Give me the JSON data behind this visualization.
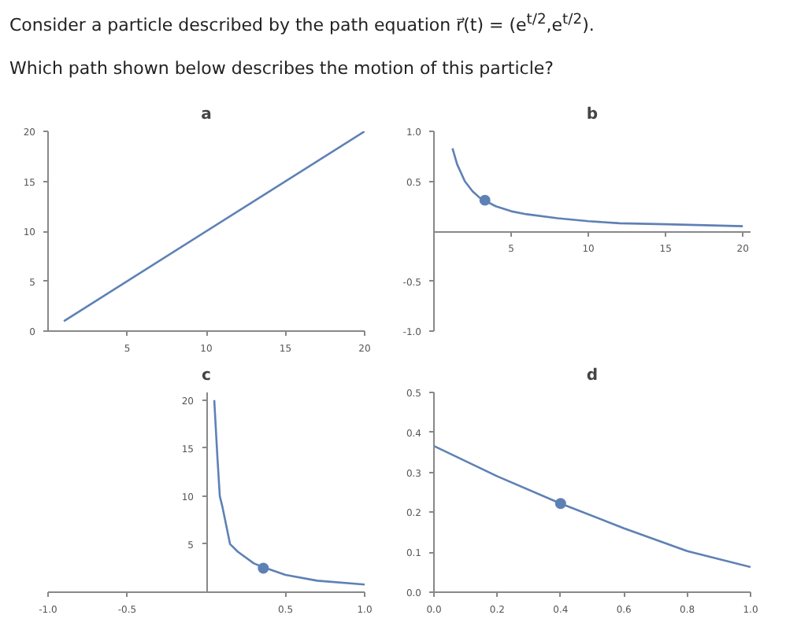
{
  "chart_data": [
    {
      "type": "other",
      "title": "Consider a particle described by the path equation r⃗(t) = (e$^{t/2}$,e$^{t/2}$).",
      "subtitle": "Which path shown below describes the motion of this particle?"
    },
    {
      "type": "line",
      "title": "a",
      "xlim": [
        0,
        20
      ],
      "ylim": [
        0,
        20
      ],
      "xticks": [
        5,
        10,
        15,
        20
      ],
      "yticks": [
        0,
        5,
        10,
        15,
        20
      ],
      "series": [
        {
          "color": "#5e81b5",
          "x": [
            1,
            20
          ],
          "values": [
            1,
            20
          ]
        }
      ]
    },
    {
      "type": "line",
      "title": "b",
      "xlim": [
        0,
        20.5
      ],
      "ylim": [
        -1,
        1
      ],
      "xticks": [
        5,
        10,
        15,
        20
      ],
      "yticks": [
        {
          "value": 1,
          "label": "1.0"
        },
        0.5,
        -0.5,
        {
          "value": -1,
          "label": "-1.0"
        }
      ],
      "series": [
        {
          "color": "#5e81b5",
          "x": [
            1.2,
            1.5,
            2,
            2.5,
            3,
            4,
            5,
            6,
            8,
            10,
            12,
            15,
            20
          ],
          "values": [
            0.83,
            0.67,
            0.5,
            0.4,
            0.33,
            0.25,
            0.2,
            0.17,
            0.13,
            0.1,
            0.08,
            0.07,
            0.05
          ]
        },
        {
          "type": "scatter",
          "color": "#5e81b5",
          "x": [
            3.3
          ],
          "values": [
            0.31
          ]
        }
      ]
    },
    {
      "type": "line",
      "title": "c",
      "xlim": [
        -1,
        1
      ],
      "ylim": [
        0,
        20.8
      ],
      "xticks": [
        {
          "value": -1,
          "label": "-1.0"
        },
        -0.5,
        0.5,
        {
          "value": 1,
          "label": "1.0"
        }
      ],
      "yticks": [
        5,
        10,
        15,
        20
      ],
      "series": [
        {
          "color": "#5e81b5",
          "x": [
            0.05,
            0.07,
            0.085,
            0.1,
            0.15,
            0.2,
            0.3,
            0.36,
            0.5,
            0.7,
            1
          ],
          "values": [
            20,
            14,
            10,
            9,
            5,
            4.2,
            3,
            2.6,
            1.8,
            1.2,
            0.8
          ]
        },
        {
          "type": "scatter",
          "color": "#5e81b5",
          "x": [
            0.36
          ],
          "values": [
            2.5
          ]
        }
      ]
    },
    {
      "type": "line",
      "title": "d",
      "xlim": [
        0,
        1
      ],
      "ylim": [
        0,
        0.5
      ],
      "xticks": [
        {
          "value": 0,
          "label": "0.0"
        },
        0.2,
        0.4,
        0.6,
        0.8,
        {
          "value": 1,
          "label": "1.0"
        }
      ],
      "yticks": [
        {
          "value": 0,
          "label": "0.0"
        },
        0.1,
        0.2,
        0.3,
        0.4,
        0.5
      ],
      "series": [
        {
          "color": "#5e81b5",
          "x": [
            0,
            0.2,
            0.4,
            0.6,
            0.8,
            1
          ],
          "values": [
            0.366,
            0.29,
            0.222,
            0.16,
            0.103,
            0.063
          ]
        },
        {
          "type": "scatter",
          "color": "#5e81b5",
          "x": [
            0.4
          ],
          "values": [
            0.222
          ]
        }
      ]
    }
  ]
}
